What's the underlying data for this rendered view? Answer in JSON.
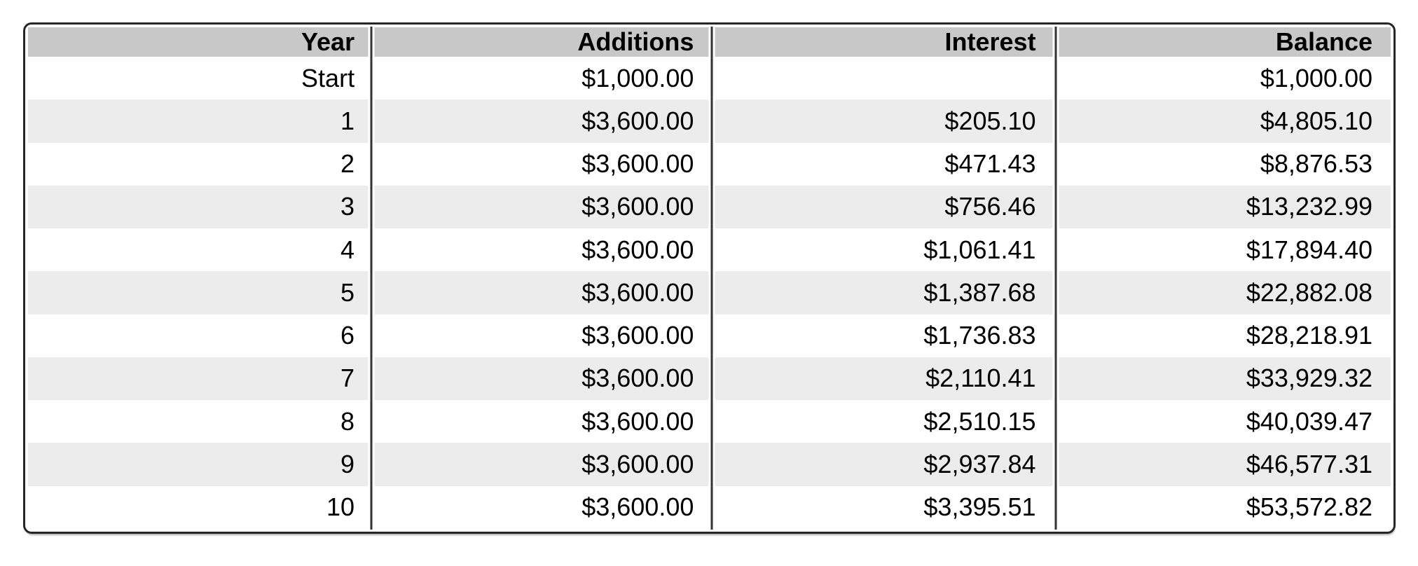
{
  "colors": {
    "border": "#262626",
    "divider": "#333333",
    "header_bg": "#c8c8c8",
    "alt_row_bg": "#ececec",
    "row_bg": "#ffffff",
    "text": "#000000"
  },
  "chart_data": {
    "type": "table",
    "columns": [
      "Year",
      "Additions",
      "Interest",
      "Balance"
    ],
    "rows": [
      [
        "Start",
        "$1,000.00",
        "",
        "$1,000.00"
      ],
      [
        "1",
        "$3,600.00",
        "$205.10",
        "$4,805.10"
      ],
      [
        "2",
        "$3,600.00",
        "$471.43",
        "$8,876.53"
      ],
      [
        "3",
        "$3,600.00",
        "$756.46",
        "$13,232.99"
      ],
      [
        "4",
        "$3,600.00",
        "$1,061.41",
        "$17,894.40"
      ],
      [
        "5",
        "$3,600.00",
        "$1,387.68",
        "$22,882.08"
      ],
      [
        "6",
        "$3,600.00",
        "$1,736.83",
        "$28,218.91"
      ],
      [
        "7",
        "$3,600.00",
        "$2,110.41",
        "$33,929.32"
      ],
      [
        "8",
        "$3,600.00",
        "$2,510.15",
        "$40,039.47"
      ],
      [
        "9",
        "$3,600.00",
        "$2,937.84",
        "$46,577.31"
      ],
      [
        "10",
        "$3,600.00",
        "$3,395.51",
        "$53,572.82"
      ]
    ],
    "layout": {
      "striping": "odd-year-rows-shaded",
      "alignment": "right",
      "grid": "column-rules-only"
    }
  }
}
